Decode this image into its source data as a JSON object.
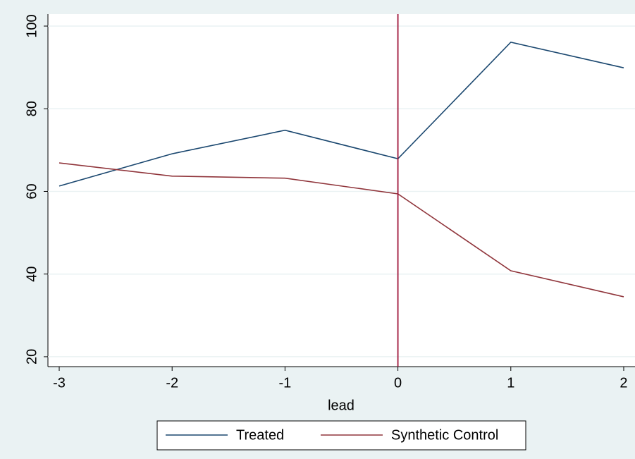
{
  "chart_data": {
    "type": "line",
    "x": [
      -3,
      -2,
      -1,
      0,
      1,
      2
    ],
    "series": [
      {
        "name": "Treated",
        "color": "#1a476f",
        "values": [
          61.3,
          69.1,
          74.8,
          67.9,
          96.1,
          89.9
        ]
      },
      {
        "name": "Synthetic Control",
        "color": "#90353b",
        "values": [
          66.9,
          63.7,
          63.2,
          59.4,
          40.8,
          34.5
        ]
      }
    ],
    "xlabel": "lead",
    "xlim": [
      -3.1,
      2.1
    ],
    "xticks": [
      -3,
      -2,
      -1,
      0,
      1,
      2
    ],
    "ylim": [
      17.6,
      102.9
    ],
    "yticks": [
      20,
      40,
      60,
      80,
      100
    ],
    "vline": 0,
    "vline_color": "#a0183c",
    "grid": true
  }
}
